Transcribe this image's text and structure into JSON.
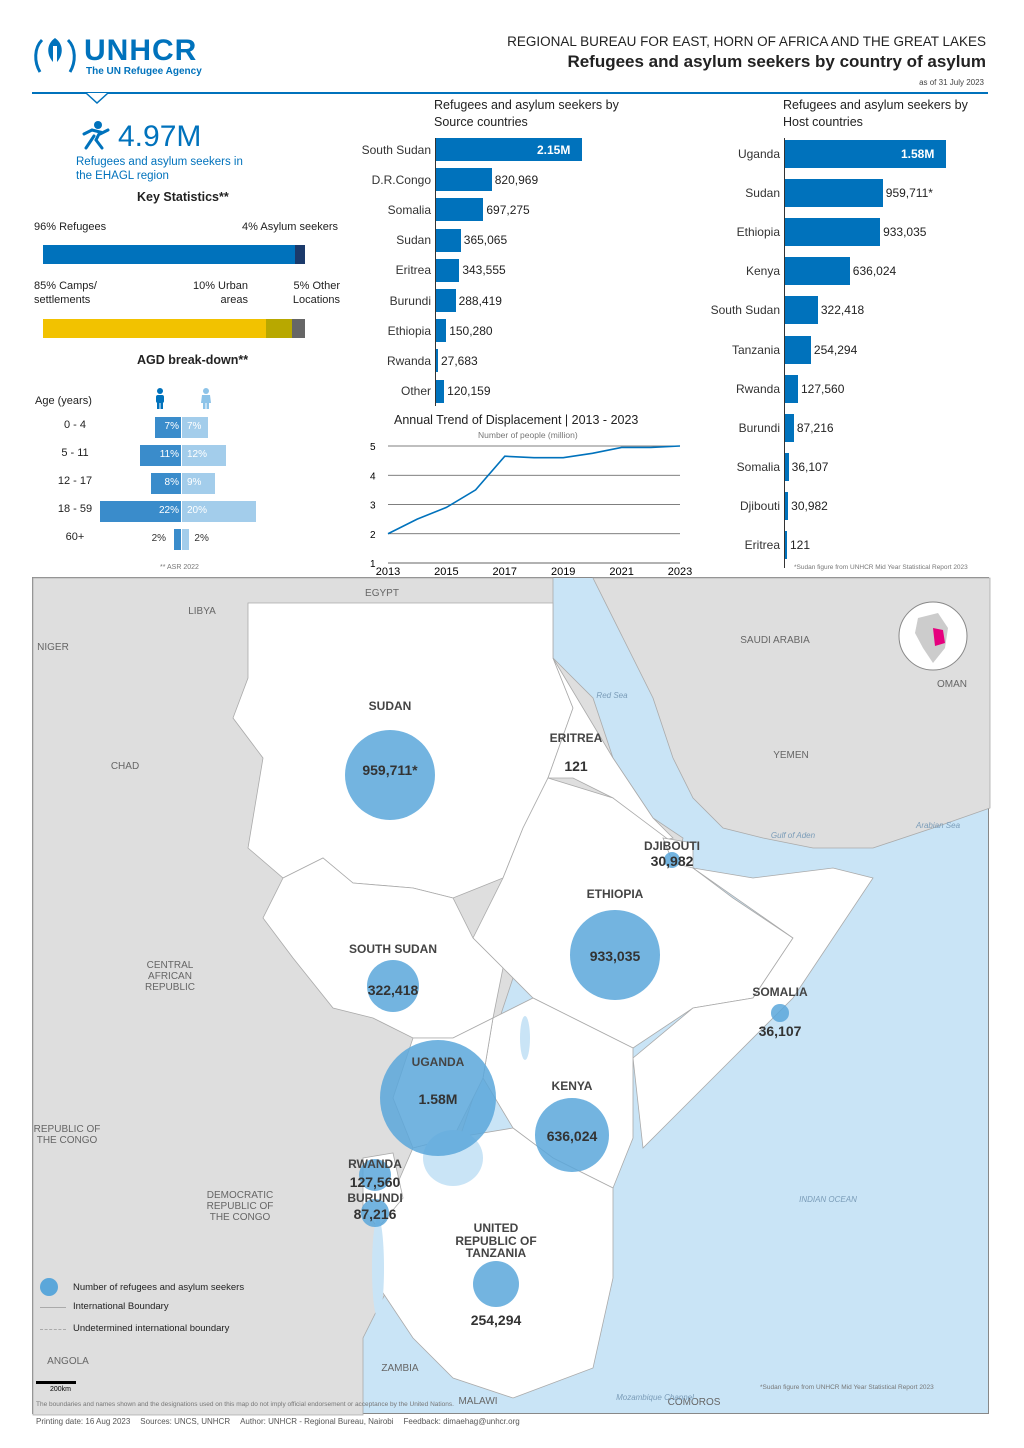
{
  "header": {
    "logo_text": "UNHCR",
    "logo_sub": "The UN Refugee Agency",
    "region": "REGIONAL BUREAU FOR EAST, HORN OF AFRICA AND THE GREAT LAKES",
    "title": "Refugees and asylum seekers by country of asylum",
    "date": "as of 31 July 2023"
  },
  "summary": {
    "total": "4.97M",
    "total_label": "Refugees and asylum seekers in the EHAGL region",
    "key_stats_title": "Key Statistics**",
    "refugees_label": "96% Refugees",
    "asylum_label": "4% Asylum seekers",
    "refugees_pct": 96,
    "asylum_pct": 4,
    "camps_label": "85% Camps/ settlements",
    "urban_label": "10% Urban areas",
    "other_label": "5% Other Locations",
    "camps_pct": 85,
    "urban_pct": 10,
    "other_pct": 5,
    "colors": {
      "refugees": "#0072BC",
      "asylum": "#1B3A6B",
      "camps": "#F2C200",
      "urban": "#B8A800",
      "other": "#666666"
    }
  },
  "agd": {
    "title": "AGD break-down**",
    "age_header": "Age (years)",
    "footnote": "** ASR 2022",
    "rows": [
      {
        "age": "0 - 4",
        "male": 7,
        "female": 7,
        "male_label": "7%",
        "female_label": "7%"
      },
      {
        "age": "5 - 11",
        "male": 11,
        "female": 12,
        "male_label": "11%",
        "female_label": "12%"
      },
      {
        "age": "12 - 17",
        "male": 8,
        "female": 9,
        "male_label": "8%",
        "female_label": "9%"
      },
      {
        "age": "18 - 59",
        "male": 22,
        "female": 20,
        "male_label": "22%",
        "female_label": "20%"
      },
      {
        "age": "60+",
        "male": 2,
        "female": 2,
        "male_label": "2%",
        "female_label": "2%"
      }
    ]
  },
  "source_chart": {
    "title": "Refugees and asylum seekers by Source countries",
    "items": [
      {
        "name": "South Sudan",
        "value": 2150000,
        "label": "2.15M"
      },
      {
        "name": "D.R.Congo",
        "value": 820969,
        "label": "820,969"
      },
      {
        "name": "Somalia",
        "value": 697275,
        "label": "697,275"
      },
      {
        "name": "Sudan",
        "value": 365065,
        "label": "365,065"
      },
      {
        "name": "Eritrea",
        "value": 343555,
        "label": "343,555"
      },
      {
        "name": "Burundi",
        "value": 288419,
        "label": "288,419"
      },
      {
        "name": "Ethiopia",
        "value": 150280,
        "label": "150,280"
      },
      {
        "name": "Rwanda",
        "value": 27683,
        "label": "27,683"
      },
      {
        "name": "Other",
        "value": 120159,
        "label": "120,159"
      }
    ]
  },
  "host_chart": {
    "title": "Refugees and asylum seekers by Host countries",
    "footnote": "*Sudan figure from UNHCR Mid Year Statistical Report 2023",
    "items": [
      {
        "name": "Uganda",
        "value": 1580000,
        "label": "1.58M"
      },
      {
        "name": "Sudan",
        "value": 959711,
        "label": "959,711*"
      },
      {
        "name": "Ethiopia",
        "value": 933035,
        "label": "933,035"
      },
      {
        "name": "Kenya",
        "value": 636024,
        "label": "636,024"
      },
      {
        "name": "South Sudan",
        "value": 322418,
        "label": "322,418"
      },
      {
        "name": "Tanzania",
        "value": 254294,
        "label": "254,294"
      },
      {
        "name": "Rwanda",
        "value": 127560,
        "label": "127,560"
      },
      {
        "name": "Burundi",
        "value": 87216,
        "label": "87,216"
      },
      {
        "name": "Somalia",
        "value": 36107,
        "label": "36,107"
      },
      {
        "name": "Djibouti",
        "value": 30982,
        "label": "30,982"
      },
      {
        "name": "Eritrea",
        "value": 121,
        "label": "121"
      }
    ]
  },
  "chart_data": {
    "type": "line",
    "title": "Annual Trend of Displacement | 2013 - 2023",
    "ylabel": "Number of people (million)",
    "x": [
      2013,
      2014,
      2015,
      2016,
      2017,
      2018,
      2019,
      2020,
      2021,
      2022,
      2023
    ],
    "values": [
      2.0,
      2.5,
      2.9,
      3.5,
      4.65,
      4.6,
      4.6,
      4.75,
      4.95,
      4.95,
      5.0
    ],
    "xticks": [
      "2013",
      "2015",
      "2017",
      "2019",
      "2021",
      "2023"
    ],
    "yticks": [
      "1",
      "2",
      "3",
      "4",
      "5"
    ],
    "ylim": [
      1,
      5
    ]
  },
  "map": {
    "countries": [
      {
        "name": "SUDAN",
        "value": "959,711*"
      },
      {
        "name": "ERITREA",
        "value": "121"
      },
      {
        "name": "DJIBOUTI",
        "value": "30,982"
      },
      {
        "name": "ETHIOPIA",
        "value": "933,035"
      },
      {
        "name": "SOMALIA",
        "value": "36,107"
      },
      {
        "name": "SOUTH SUDAN",
        "value": "322,418"
      },
      {
        "name": "UGANDA",
        "value": "1.58M"
      },
      {
        "name": "KENYA",
        "value": "636,024"
      },
      {
        "name": "RWANDA",
        "value": "127,560"
      },
      {
        "name": "BURUNDI",
        "value": "87,216"
      },
      {
        "name": "UNITED REPUBLIC OF TANZANIA",
        "value": "254,294"
      }
    ],
    "neighbors": [
      "EGYPT",
      "LIBYA",
      "NIGER",
      "CHAD",
      "SAUDI ARABIA",
      "OMAN",
      "YEMEN",
      "CENTRAL AFRICAN REPUBLIC",
      "REPUBLIC OF THE CONGO",
      "DEMOCRATIC REPUBLIC OF THE CONGO",
      "ANGOLA",
      "ZAMBIA",
      "MALAWI",
      "COMOROS"
    ],
    "seas": [
      "Red Sea",
      "Gulf of Aden",
      "Arabian Sea",
      "INDIAN OCEAN",
      "Mozambique Channel"
    ],
    "legend": [
      "Number of refugees and asylum seekers",
      "International Boundary",
      "Undetermined international boundary"
    ],
    "scale": "200km",
    "note": "*Sudan figure from UNHCR Mid Year Statistical Report 2023",
    "disclaimer": "The boundaries and names shown and the designations used on this map do not imply official endorsement or acceptance by the United Nations."
  },
  "footer": {
    "printing": "Printing date: 16 Aug 2023",
    "sources": "Sources: UNCS, UNHCR",
    "author": "Author: UNHCR - Regional Bureau, Nairobi",
    "feedback": "Feedback: dimaehag@unhcr.org"
  }
}
